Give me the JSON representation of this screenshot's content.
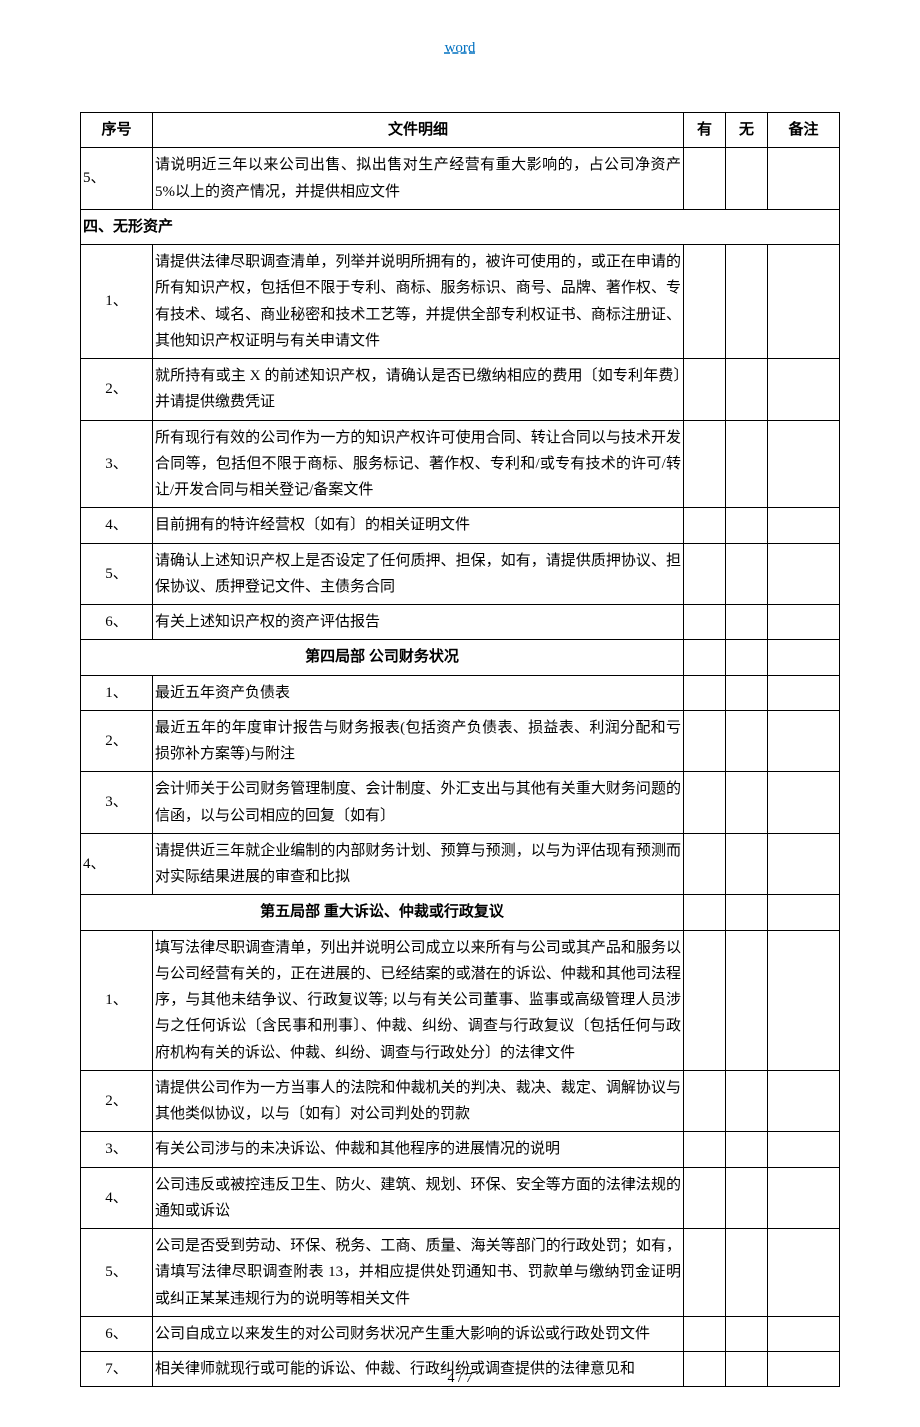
{
  "header_label": "word",
  "page_footer": "4 / 7",
  "columns": {
    "no": "序号",
    "desc": "文件明细",
    "yes": "有",
    "no_col": "无",
    "remark": "备注"
  },
  "section_a_heading": "四、无形资产",
  "section_b_heading": "第四局部 公司财务状况",
  "section_c_heading": "第五局部 重大诉讼、仲裁或行政复议",
  "pre_row": {
    "no": "5、",
    "desc": "请说明近三年以来公司出售、拟出售对生产经营有重大影响的，占公司净资产 5%以上的资产情况，并提供相应文件"
  },
  "sec_a": [
    {
      "no": "1、",
      "desc": "请提供法律尽职调查清单，列举并说明所拥有的，被许可使用的，或正在申请的所有知识产权，包括但不限于专利、商标、服务标识、商号、品牌、著作权、专有技术、域名、商业秘密和技术工艺等，并提供全部专利权证书、商标注册证、其他知识产权证明与有关申请文件"
    },
    {
      "no": "2、",
      "desc": "就所持有或主 X 的前述知识产权，请确认是否已缴纳相应的费用〔如专利年费〕并请提供缴费凭证"
    },
    {
      "no": "3、",
      "desc": "所有现行有效的公司作为一方的知识产权许可使用合同、转让合同以与技术开发合同等，包括但不限于商标、服务标记、著作权、专利和/或专有技术的许可/转让/开发合同与相关登记/备案文件"
    },
    {
      "no": "4、",
      "desc": "目前拥有的特许经营权〔如有〕的相关证明文件"
    },
    {
      "no": "5、",
      "desc": "请确认上述知识产权上是否设定了任何质押、担保，如有，请提供质押协议、担保协议、质押登记文件、主债务合同"
    },
    {
      "no": "6、",
      "desc": "有关上述知识产权的资产评估报告"
    }
  ],
  "sec_b": [
    {
      "no": "1、",
      "desc": "最近五年资产负债表"
    },
    {
      "no": "2、",
      "desc": "最近五年的年度审计报告与财务报表(包括资产负债表、损益表、利润分配和亏损弥补方案等)与附注"
    },
    {
      "no": "3、",
      "desc": "会计师关于公司财务管理制度、会计制度、外汇支出与其他有关重大财务问题的信函，以与公司相应的回复〔如有〕"
    },
    {
      "no": "4、",
      "desc": "请提供近三年就企业编制的内部财务计划、预算与预测，以与为评估现有预测而对实际结果进展的审查和比拟"
    }
  ],
  "sec_c": [
    {
      "no": "1、",
      "desc": "填写法律尽职调查清单，列出并说明公司成立以来所有与公司或其产品和服务以与公司经营有关的，正在进展的、已经结案的或潜在的诉讼、仲裁和其他司法程序，与其他未结争议、行政复议等; 以与有关公司董事、监事或高级管理人员涉与之任何诉讼〔含民事和刑事〕、仲裁、纠纷、调查与行政复议〔包括任何与政府机构有关的诉讼、仲裁、纠纷、调查与行政处分〕的法律文件"
    },
    {
      "no": "2、",
      "desc": "请提供公司作为一方当事人的法院和仲裁机关的判决、裁决、裁定、调解协议与其他类似协议，以与〔如有〕对公司判处的罚款"
    },
    {
      "no": "3、",
      "desc": "有关公司涉与的未决诉讼、仲裁和其他程序的进展情况的说明"
    },
    {
      "no": "4、",
      "desc": "公司违反或被控违反卫生、防火、建筑、规划、环保、安全等方面的法律法规的通知或诉讼"
    },
    {
      "no": "5、",
      "desc": "公司是否受到劳动、环保、税务、工商、质量、海关等部门的行政处罚；如有，请填写法律尽职调查附表 13，并相应提供处罚通知书、罚款单与缴纳罚金证明或纠正某某违规行为的说明等相关文件"
    },
    {
      "no": "6、",
      "desc": "公司自成立以来发生的对公司财务状况产生重大影响的诉讼或行政处罚文件"
    },
    {
      "no": "7、",
      "desc": "相关律师就现行或可能的诉讼、仲裁、行政纠纷或调查提供的法律意见和"
    }
  ]
}
